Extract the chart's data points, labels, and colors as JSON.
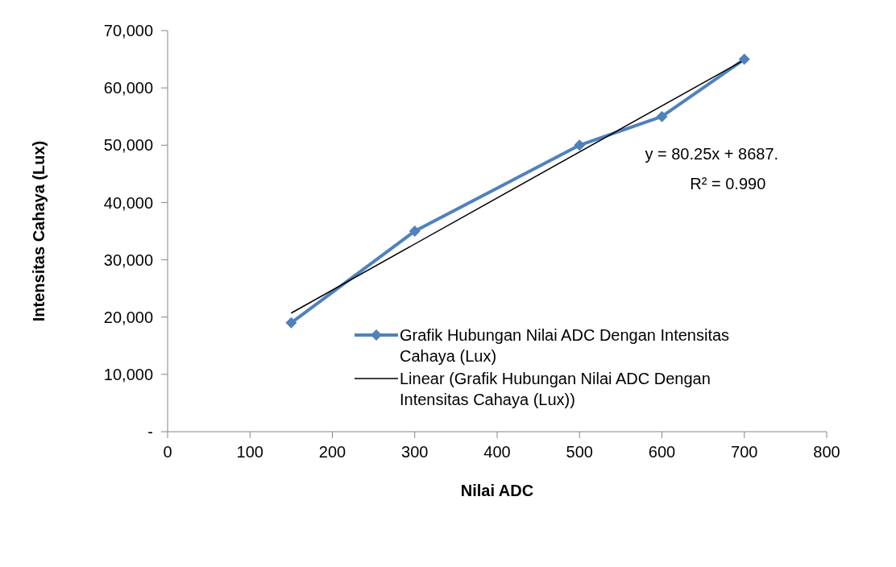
{
  "chart_data": {
    "type": "line",
    "xlabel": "Nilai ADC",
    "ylabel": "Intensitas Cahaya (Lux)",
    "xlim": [
      0,
      800
    ],
    "xticks": [
      0,
      100,
      200,
      300,
      400,
      500,
      600,
      700,
      800
    ],
    "ylim": [
      0,
      70000
    ],
    "yticks": [
      {
        "value": 0,
        "label": "-"
      },
      {
        "value": 10000,
        "label": "10,000"
      },
      {
        "value": 20000,
        "label": "20,000"
      },
      {
        "value": 30000,
        "label": "30,000"
      },
      {
        "value": 40000,
        "label": "40,000"
      },
      {
        "value": 50000,
        "label": "50,000"
      },
      {
        "value": 60000,
        "label": "60,000"
      },
      {
        "value": 70000,
        "label": "70,000"
      }
    ],
    "grid": false,
    "legend": "center",
    "line_style": "solid",
    "series": [
      {
        "name": "Grafik Hubungan Nilai ADC Dengan Intensitas Cahaya (Lux)",
        "color": "#4f81bd",
        "marker": "diamond",
        "x": [
          150,
          300,
          500,
          600,
          700
        ],
        "values": [
          19000,
          35000,
          50000,
          55000,
          65000
        ]
      },
      {
        "name": "Linear (Grafik Hubungan Nilai ADC Dengan Intensitas Cahaya (Lux))",
        "color": "#000000",
        "marker": "none",
        "x": [
          150,
          700
        ],
        "values": [
          20700,
          64900
        ]
      }
    ],
    "annotations": [
      "y = 80.25x + 8687.",
      "R² = 0.990"
    ]
  }
}
